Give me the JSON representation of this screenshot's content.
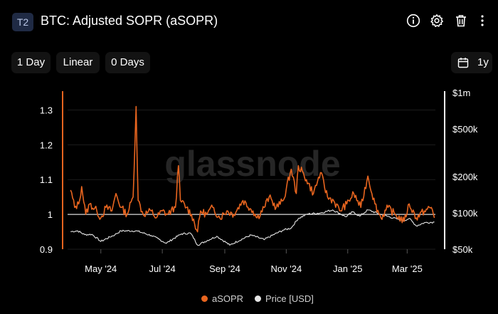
{
  "header": {
    "badge": "T2",
    "title": "BTC: Adjusted SOPR (aSOPR)"
  },
  "toolbar": {
    "resolution": "1 Day",
    "scale": "Linear",
    "sma": "0 Days",
    "range": "1y"
  },
  "watermark": "glassnode",
  "legend": {
    "series1": "aSOPR",
    "series2": "Price [USD]"
  },
  "colors": {
    "asopr": "#e8651f",
    "price": "#e6e6e6",
    "baseline": "#d9d9d9",
    "left_axis": "#e8651f",
    "right_axis": "#ffffff"
  },
  "chart_data": {
    "type": "line",
    "x_ticks": [
      "May '24",
      "Jul '24",
      "Sep '24",
      "Nov '24",
      "Jan '25",
      "Mar '25"
    ],
    "left_axis": {
      "ticks": [
        "0.9",
        "1",
        "1.1",
        "1.2",
        "1.3"
      ],
      "ylim": [
        0.9,
        1.35
      ]
    },
    "right_axis": {
      "scale": "log",
      "ticks": [
        "$50k",
        "$100k",
        "$200k",
        "$500k",
        "$1m"
      ],
      "ylim": [
        50000,
        1000000
      ]
    },
    "baseline": 1,
    "series": [
      {
        "name": "aSOPR",
        "axis": "left",
        "key_points": [
          [
            "2024-04-01",
            1.07
          ],
          [
            "2024-04-05",
            1.02
          ],
          [
            "2024-04-09",
            1.03
          ],
          [
            "2024-04-12",
            1.08
          ],
          [
            "2024-04-16",
            1.0
          ],
          [
            "2024-04-20",
            1.03
          ],
          [
            "2024-04-27",
            1.01
          ],
          [
            "2024-05-01",
            0.99
          ],
          [
            "2024-05-06",
            1.02
          ],
          [
            "2024-05-12",
            1.01
          ],
          [
            "2024-05-16",
            1.06
          ],
          [
            "2024-05-21",
            1.02
          ],
          [
            "2024-05-27",
            1.0
          ],
          [
            "2024-06-02",
            1.05
          ],
          [
            "2024-06-05",
            1.31
          ],
          [
            "2024-06-07",
            1.04
          ],
          [
            "2024-06-12",
            1.0
          ],
          [
            "2024-06-20",
            1.01
          ],
          [
            "2024-06-25",
            0.99
          ],
          [
            "2024-07-01",
            1.01
          ],
          [
            "2024-07-06",
            1.0
          ],
          [
            "2024-07-14",
            1.02
          ],
          [
            "2024-07-17",
            1.14
          ],
          [
            "2024-07-19",
            1.04
          ],
          [
            "2024-07-25",
            1.02
          ],
          [
            "2024-07-30",
            1.0
          ],
          [
            "2024-08-05",
            0.95
          ],
          [
            "2024-08-08",
            1.01
          ],
          [
            "2024-08-14",
            1.0
          ],
          [
            "2024-08-20",
            1.02
          ],
          [
            "2024-08-27",
            0.99
          ],
          [
            "2024-09-03",
            1.01
          ],
          [
            "2024-09-10",
            1.0
          ],
          [
            "2024-09-19",
            1.04
          ],
          [
            "2024-09-29",
            1.01
          ],
          [
            "2024-10-03",
            0.99
          ],
          [
            "2024-10-10",
            1.02
          ],
          [
            "2024-10-15",
            1.05
          ],
          [
            "2024-10-22",
            1.02
          ],
          [
            "2024-10-29",
            1.04
          ],
          [
            "2024-11-06",
            1.13
          ],
          [
            "2024-11-11",
            1.06
          ],
          [
            "2024-11-13",
            1.14
          ],
          [
            "2024-11-21",
            1.1
          ],
          [
            "2024-11-28",
            1.06
          ],
          [
            "2024-12-05",
            1.12
          ],
          [
            "2024-12-12",
            1.05
          ],
          [
            "2024-12-18",
            1.04
          ],
          [
            "2024-12-24",
            1.01
          ],
          [
            "2024-12-31",
            1.03
          ],
          [
            "2025-01-07",
            1.06
          ],
          [
            "2025-01-14",
            1.02
          ],
          [
            "2025-01-21",
            1.11
          ],
          [
            "2025-01-28",
            1.03
          ],
          [
            "2025-02-03",
            0.99
          ],
          [
            "2025-02-10",
            1.02
          ],
          [
            "2025-02-17",
            1.0
          ],
          [
            "2025-02-26",
            0.98
          ],
          [
            "2025-03-03",
            1.03
          ],
          [
            "2025-03-10",
            0.99
          ],
          [
            "2025-03-18",
            1.01
          ],
          [
            "2025-03-25",
            1.02
          ],
          [
            "2025-03-28",
            0.99
          ]
        ]
      },
      {
        "name": "Price [USD]",
        "axis": "right",
        "key_points": [
          [
            "2024-04-01",
            70000
          ],
          [
            "2024-04-08",
            71000
          ],
          [
            "2024-04-15",
            66000
          ],
          [
            "2024-04-22",
            66500
          ],
          [
            "2024-05-01",
            58000
          ],
          [
            "2024-05-15",
            66000
          ],
          [
            "2024-05-21",
            71000
          ],
          [
            "2024-06-05",
            71000
          ],
          [
            "2024-06-20",
            65000
          ],
          [
            "2024-07-05",
            56000
          ],
          [
            "2024-07-20",
            67000
          ],
          [
            "2024-07-29",
            68000
          ],
          [
            "2024-08-05",
            54000
          ],
          [
            "2024-08-24",
            64000
          ],
          [
            "2024-09-06",
            54000
          ],
          [
            "2024-09-27",
            65500
          ],
          [
            "2024-10-10",
            60000
          ],
          [
            "2024-10-29",
            72000
          ],
          [
            "2024-11-06",
            75000
          ],
          [
            "2024-11-13",
            90000
          ],
          [
            "2024-11-22",
            98000
          ],
          [
            "2024-12-05",
            100000
          ],
          [
            "2024-12-17",
            106000
          ],
          [
            "2024-12-30",
            93000
          ],
          [
            "2025-01-06",
            102000
          ],
          [
            "2025-01-13",
            94000
          ],
          [
            "2025-01-21",
            106000
          ],
          [
            "2025-02-03",
            97000
          ],
          [
            "2025-02-25",
            86000
          ],
          [
            "2025-03-03",
            90000
          ],
          [
            "2025-03-10",
            78000
          ],
          [
            "2025-03-18",
            83000
          ],
          [
            "2025-03-28",
            84000
          ]
        ]
      }
    ]
  }
}
